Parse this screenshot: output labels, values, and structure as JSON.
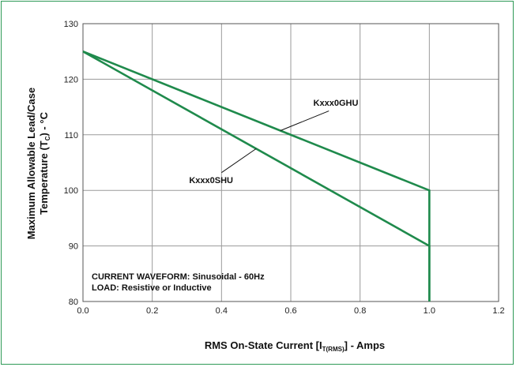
{
  "chart_data": {
    "type": "line",
    "xlabel": {
      "main": "RMS On-State Current [I",
      "sub": "T(RMS)",
      "end": "] - Amps"
    },
    "ylabel": {
      "line1": "Maximum Allowable Lead/Case",
      "line2_main": "Temperature (T",
      "line2_sub": "C",
      "line2_end": ") - °C"
    },
    "xlim": [
      0.0,
      1.2
    ],
    "ylim": [
      80,
      130
    ],
    "x_ticks": [
      0.0,
      0.2,
      0.4,
      0.6,
      0.8,
      1.0,
      1.2
    ],
    "x_tick_labels": [
      "0.0",
      "0.2",
      "0.4",
      "0.6",
      "0.8",
      "1.0",
      "1.2"
    ],
    "y_ticks": [
      80,
      90,
      100,
      110,
      120,
      130
    ],
    "y_tick_labels": [
      "80",
      "90",
      "100",
      "110",
      "120",
      "130"
    ],
    "grid": true,
    "series": [
      {
        "name": "Kxxx0GHU",
        "x": [
          0.0,
          1.0,
          1.0
        ],
        "y": [
          125,
          100,
          80
        ]
      },
      {
        "name": "Kxxx0SHU",
        "x": [
          0.0,
          1.0,
          1.0
        ],
        "y": [
          125,
          90,
          80
        ]
      }
    ],
    "annotations": {
      "line1": "CURRENT WAVEFORM: Sinusoidal - 60Hz",
      "line2": "LOAD: Resistive or Inductive"
    },
    "colors": {
      "series": "#1f8a4c",
      "frame": "#2e9a57",
      "grid": "#9a9a9a",
      "axis": "#555555"
    }
  }
}
